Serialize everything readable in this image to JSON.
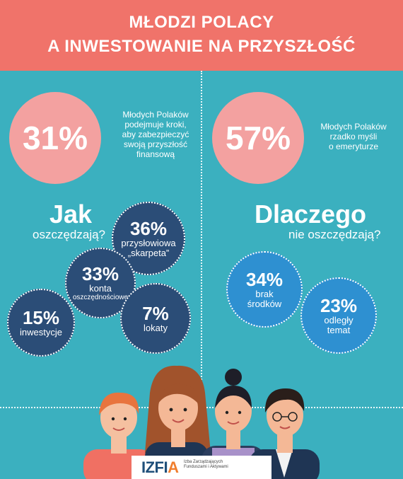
{
  "title": {
    "line1": "MŁODZI POLACY",
    "line2": "A INWESTOWANIE NA PRZYSZŁOŚĆ"
  },
  "left": {
    "stat": {
      "value": "31%",
      "text_lines": [
        "Młodych Polaków",
        "podejmuje kroki,",
        "aby zabezpieczyć",
        "swoją przyszłość",
        "finansową"
      ]
    },
    "heading": "Jak",
    "subheading": "oszczędzają?",
    "bubbles": [
      {
        "value": "36%",
        "label_lines": [
          "przysłowiowa",
          "„skarpeta”"
        ]
      },
      {
        "value": "33%",
        "label_lines": [
          "konta"
        ],
        "small_lines": [
          "oszczędnościowe"
        ]
      },
      {
        "value": "15%",
        "label_lines": [
          "inwestycje"
        ]
      },
      {
        "value": "7%",
        "label_lines": [
          "lokaty"
        ]
      }
    ]
  },
  "right": {
    "stat": {
      "value": "57%",
      "text_lines": [
        "Młodych Polaków",
        "rzadko myśli",
        "o emeryturze"
      ]
    },
    "heading": "Dlaczego",
    "subheading": "nie oszczędzają?",
    "bubbles": [
      {
        "value": "34%",
        "label_lines": [
          "brak",
          "środków"
        ]
      },
      {
        "value": "23%",
        "label_lines": [
          "odległy",
          "temat"
        ]
      }
    ]
  },
  "logo": {
    "text_main": "IZFI",
    "text_accent": "A",
    "sub_lines": [
      "Izba Zarządzających",
      "Funduszami i Aktywami"
    ]
  },
  "colors": {
    "header": "#f0736a",
    "background": "#3bb0bf",
    "stat_circle": "#f3a1a0",
    "navy_bubble": "#2b4d77",
    "blue_bubble": "#2e90d1"
  }
}
